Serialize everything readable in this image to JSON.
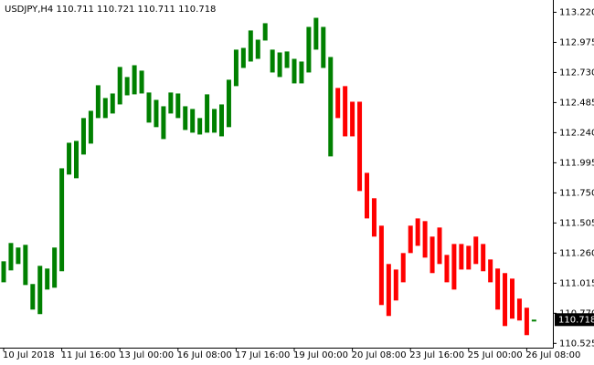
{
  "chart_data": {
    "type": "bar-range",
    "title": "USDJPY,H4  110.711 110.721 110.711 110.718",
    "categories": [
      "10 Jul 2018",
      null,
      null,
      null,
      null,
      null,
      null,
      null,
      "11 Jul 16:00",
      null,
      null,
      null,
      null,
      null,
      null,
      null,
      "13 Jul 00:00",
      null,
      null,
      null,
      null,
      null,
      null,
      null,
      "16 Jul 08:00",
      null,
      null,
      null,
      null,
      null,
      null,
      null,
      "17 Jul 16:00",
      null,
      null,
      null,
      null,
      null,
      null,
      null,
      "19 Jul 00:00",
      null,
      null,
      null,
      null,
      null,
      null,
      null,
      "20 Jul 08:00",
      null,
      null,
      null,
      null,
      null,
      null,
      null,
      "23 Jul 16:00",
      null,
      null,
      null,
      null,
      null,
      null,
      null,
      "25 Jul 00:00",
      null,
      null,
      null,
      null,
      null,
      null,
      null,
      "26 Jul 08:00",
      null
    ],
    "open": [
      111.022,
      111.119,
      111.171,
      111.0,
      110.8,
      110.763,
      110.963,
      110.978,
      111.112,
      111.899,
      111.869,
      112.062,
      112.151,
      112.359,
      112.359,
      112.396,
      112.47,
      112.544,
      112.552,
      112.559,
      112.322,
      112.285,
      112.188,
      112.396,
      112.359,
      112.262,
      112.24,
      112.225,
      112.24,
      112.24,
      112.21,
      112.285,
      112.619,
      112.767,
      112.819,
      112.841,
      112.99,
      112.73,
      112.693,
      112.767,
      112.641,
      112.641,
      112.73,
      112.916,
      112.767,
      112.047,
      112.604,
      112.619,
      112.492,
      112.492,
      111.913,
      111.706,
      111.483,
      111.171,
      111.126,
      111.26,
      111.483,
      111.542,
      111.52,
      111.394,
      111.468,
      111.245,
      111.334,
      111.334,
      111.319,
      111.394,
      111.334,
      111.208,
      111.134,
      111.097,
      111.052,
      110.889,
      110.815,
      110.711
    ],
    "close": [
      111.193,
      111.342,
      111.305,
      111.327,
      111.008,
      111.156,
      111.134,
      111.305,
      111.95,
      112.158,
      112.173,
      112.359,
      112.418,
      112.626,
      112.522,
      112.559,
      112.775,
      112.693,
      112.789,
      112.745,
      112.567,
      112.507,
      112.455,
      112.567,
      112.559,
      112.455,
      112.433,
      112.359,
      112.552,
      112.433,
      112.47,
      112.671,
      112.916,
      112.93,
      113.072,
      112.997,
      113.131,
      112.916,
      112.893,
      112.901,
      112.841,
      112.819,
      113.101,
      113.175,
      113.101,
      112.856,
      112.359,
      112.21,
      112.21,
      111.765,
      111.542,
      111.394,
      110.837,
      110.748,
      110.874,
      111.022,
      111.26,
      111.319,
      111.223,
      111.097,
      111.171,
      111.022,
      110.963,
      111.126,
      111.126,
      111.171,
      111.112,
      111.022,
      110.8,
      110.666,
      110.726,
      110.711,
      110.592,
      110.718
    ],
    "up_color": "#008000",
    "down_color": "#ff0000",
    "ylim": [
      110.49,
      113.32
    ],
    "yticks": [
      {
        "value": 113.22,
        "label": "113.220"
      },
      {
        "value": 112.975,
        "label": "112.975"
      },
      {
        "value": 112.73,
        "label": "112.730"
      },
      {
        "value": 112.485,
        "label": "112.485"
      },
      {
        "value": 112.24,
        "label": "112.240"
      },
      {
        "value": 111.995,
        "label": "111.995"
      },
      {
        "value": 111.75,
        "label": "111.750"
      },
      {
        "value": 111.505,
        "label": "111.505"
      },
      {
        "value": 111.26,
        "label": "111.260"
      },
      {
        "value": 111.015,
        "label": "111.015"
      },
      {
        "value": 110.77,
        "label": "110.770"
      },
      {
        "value": 110.525,
        "label": "110.525"
      }
    ],
    "current_price_label": "110.718",
    "grid": false
  }
}
